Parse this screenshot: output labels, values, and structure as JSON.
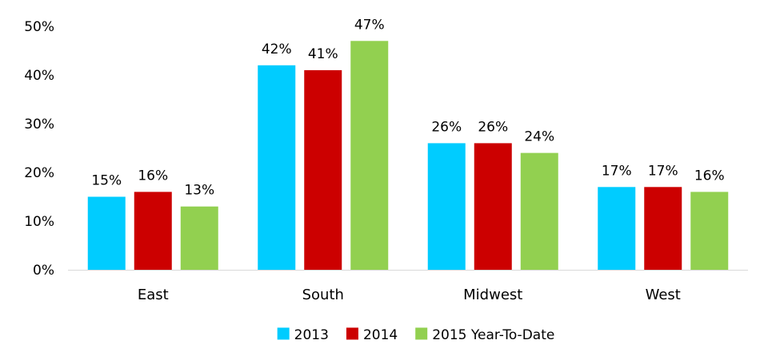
{
  "chart_data": {
    "type": "bar",
    "categories": [
      "East",
      "South",
      "Midwest",
      "West"
    ],
    "series": [
      {
        "name": "2013",
        "values": [
          15,
          42,
          26,
          17
        ],
        "labels": [
          "15%",
          "42%",
          "26%",
          "17%"
        ],
        "color": "#00CCFF"
      },
      {
        "name": "2014",
        "values": [
          16,
          41,
          26,
          17
        ],
        "labels": [
          "16%",
          "41%",
          "26%",
          "17%"
        ],
        "color": "#CC0000"
      },
      {
        "name": "2015 Year-To-Date",
        "values": [
          13,
          47,
          24,
          16
        ],
        "labels": [
          "13%",
          "47%",
          "24%",
          "16%"
        ],
        "color": "#92D050"
      }
    ],
    "ylim": [
      0,
      50
    ],
    "yticks": [
      0,
      10,
      20,
      30,
      40,
      50
    ],
    "ytick_labels": [
      "0%",
      "10%",
      "20%",
      "30%",
      "40%",
      "50%"
    ],
    "grid": false,
    "legend_position": "bottom"
  }
}
